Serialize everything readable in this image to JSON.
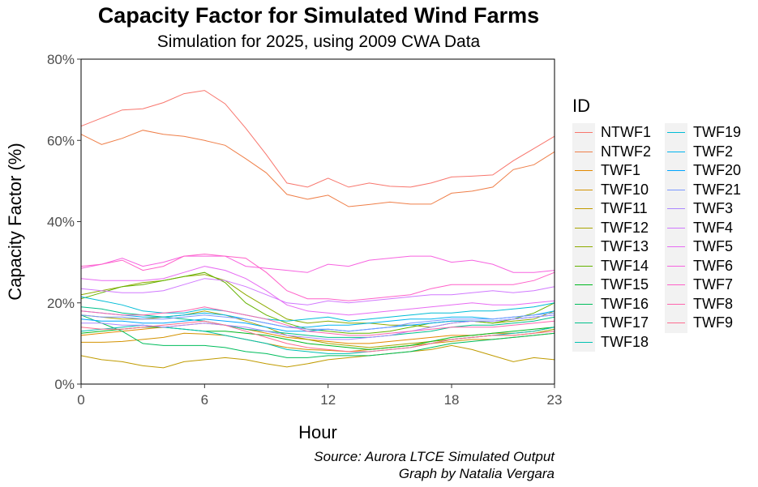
{
  "chart_data": {
    "type": "line",
    "title": "Capacity Factor for Simulated Wind Farms",
    "subtitle": "Simulation for 2025, using 2009 CWA Data",
    "xlabel": "Hour",
    "ylabel": "Capacity Factor (%)",
    "caption": [
      "Source: Aurora LTCE Simulated Output",
      "Graph by Natalia Vergara"
    ],
    "xlim": [
      0,
      23
    ],
    "ylim": [
      0,
      80
    ],
    "x_ticks": [
      0,
      6,
      12,
      18,
      23
    ],
    "x_tick_labels": [
      "0",
      "6",
      "12",
      "18",
      "23"
    ],
    "y_ticks": [
      0,
      20,
      40,
      60,
      80
    ],
    "y_tick_labels": [
      "0%",
      "20%",
      "40%",
      "60%",
      "80%"
    ],
    "grid": false,
    "legend_title": "ID",
    "legend_position": "right",
    "x": [
      0,
      1,
      2,
      3,
      4,
      5,
      6,
      7,
      8,
      9,
      10,
      11,
      12,
      13,
      14,
      15,
      16,
      17,
      18,
      19,
      20,
      21,
      22,
      23
    ],
    "series": [
      {
        "name": "NTWF1",
        "color": "#F8766D",
        "values": [
          63.5,
          65.5,
          67.5,
          67.8,
          69.3,
          71.5,
          72.3,
          69,
          63,
          56.5,
          49.5,
          48.5,
          50.7,
          48.5,
          49.5,
          48.7,
          48.5,
          49.5,
          51,
          51.2,
          51.5,
          55,
          58,
          61
        ]
      },
      {
        "name": "NTWF2",
        "color": "#EF7F49",
        "values": [
          61.5,
          59,
          60.5,
          62.5,
          61.5,
          61,
          60,
          58.8,
          55.5,
          52,
          46.7,
          45.5,
          46.5,
          43.7,
          44.2,
          44.8,
          44.3,
          44.3,
          47,
          47.5,
          48.5,
          52.8,
          54,
          57.2
        ]
      },
      {
        "name": "TWF1",
        "color": "#E38900",
        "values": [
          12,
          12.5,
          13,
          13.5,
          14,
          14.5,
          15,
          14.5,
          13.5,
          12.5,
          11.5,
          11,
          10.5,
          10,
          10,
          10.5,
          11,
          11.5,
          12,
          12,
          12.5,
          12.5,
          13,
          14
        ]
      },
      {
        "name": "TWF10",
        "color": "#D39200",
        "values": [
          10.3,
          10.3,
          10.5,
          11,
          11.5,
          12.5,
          12.3,
          12,
          11,
          10,
          9,
          8.5,
          8.3,
          8,
          8.5,
          9,
          9.5,
          10,
          10.5,
          11,
          11,
          11.5,
          12,
          12.5
        ]
      },
      {
        "name": "TWF11",
        "color": "#C09B00",
        "values": [
          7,
          6,
          5.5,
          4.5,
          4,
          5.5,
          6,
          6.5,
          6,
          5,
          4.2,
          5,
          6,
          6.5,
          7,
          7.5,
          8,
          8.5,
          9.5,
          8.5,
          7,
          5.5,
          6.5,
          6
        ]
      },
      {
        "name": "TWF12",
        "color": "#A9A400",
        "values": [
          17,
          16.5,
          16,
          16,
          16.5,
          17,
          18,
          17,
          15.5,
          14,
          12,
          11,
          10,
          9.5,
          9,
          9.5,
          10,
          10.5,
          11,
          11.5,
          12,
          12,
          12.5,
          13.5
        ]
      },
      {
        "name": "TWF13",
        "color": "#8DAB00",
        "values": [
          22,
          23,
          24,
          25,
          25.5,
          26.5,
          27,
          25.5,
          22,
          19,
          16,
          15,
          15.5,
          15,
          15,
          14.5,
          14.5,
          14,
          15,
          15.5,
          15,
          15.5,
          16,
          18
        ]
      },
      {
        "name": "TWF14",
        "color": "#64B200",
        "values": [
          21,
          22.5,
          24,
          24.5,
          25.5,
          26.5,
          27.5,
          25,
          20,
          17,
          15,
          13.5,
          13,
          12.5,
          12.5,
          13,
          14,
          15,
          15.5,
          15.5,
          15,
          16,
          17.5,
          20
        ]
      },
      {
        "name": "TWF15",
        "color": "#00B81F",
        "values": [
          12.5,
          13,
          13.5,
          14,
          14,
          13.5,
          13,
          13,
          12.5,
          12,
          11,
          10,
          9.5,
          9,
          8.5,
          9,
          9.5,
          10.5,
          11.5,
          12,
          12.5,
          13,
          13.5,
          14
        ]
      },
      {
        "name": "TWF16",
        "color": "#00BD5C",
        "values": [
          17,
          15,
          13,
          10,
          9.5,
          9.5,
          9.5,
          9,
          8,
          7.5,
          6.5,
          6.5,
          7,
          7,
          7,
          7.5,
          8,
          9,
          10,
          10.5,
          11,
          11.5,
          12,
          12.5
        ]
      },
      {
        "name": "TWF17",
        "color": "#00C08B",
        "values": [
          19,
          18.5,
          17.5,
          17,
          16.5,
          16,
          15.5,
          14.5,
          13.5,
          13,
          12.5,
          12,
          11.5,
          11.5,
          11.5,
          12,
          12.5,
          13,
          14,
          14.5,
          14.5,
          15,
          15.5,
          16.5
        ]
      },
      {
        "name": "TWF18",
        "color": "#00C1B2",
        "values": [
          13,
          13.5,
          14,
          14.5,
          14,
          13.5,
          13,
          12,
          11,
          10,
          8.5,
          8,
          7.5,
          7.5,
          8,
          8.5,
          9,
          10,
          11,
          11.5,
          12,
          12.5,
          13,
          14
        ]
      },
      {
        "name": "TWF19",
        "color": "#00BCD6",
        "values": [
          21.5,
          20.5,
          19.5,
          18,
          17.5,
          17.5,
          18.5,
          18,
          17,
          16,
          15.5,
          16,
          16.5,
          15.5,
          16,
          16.5,
          17,
          17.5,
          17.5,
          18,
          18,
          18.5,
          19,
          20
        ]
      },
      {
        "name": "TWF2",
        "color": "#00B4EF",
        "values": [
          18,
          17.5,
          17,
          16.5,
          16.5,
          17,
          17.5,
          17,
          16,
          15,
          14,
          14,
          14.5,
          14.5,
          15,
          15.5,
          16,
          16,
          16.5,
          16.5,
          16,
          16.5,
          17,
          18
        ]
      },
      {
        "name": "TWF20",
        "color": "#00A5FF",
        "values": [
          16,
          15.5,
          15.5,
          15,
          15,
          15.5,
          16,
          15.5,
          15,
          14,
          13,
          13,
          13.5,
          13,
          13.5,
          14,
          14.5,
          15,
          15.5,
          15.5,
          15.5,
          16,
          16.5,
          17
        ]
      },
      {
        "name": "TWF21",
        "color": "#7997FF",
        "values": [
          17,
          16.5,
          16.5,
          16,
          16,
          16.5,
          17,
          16.5,
          16,
          15,
          14,
          13.5,
          13.5,
          13,
          13.5,
          14,
          15,
          15.5,
          16,
          16,
          16,
          16.5,
          17,
          17.5
        ]
      },
      {
        "name": "TWF3",
        "color": "#AC88FF",
        "values": [
          15,
          15,
          14.5,
          14.5,
          14,
          14.5,
          15,
          14.5,
          14,
          13,
          12,
          11.5,
          11,
          11,
          11.5,
          12,
          13,
          14,
          15,
          15.5,
          15.5,
          16,
          16.5,
          17
        ]
      },
      {
        "name": "TWF4",
        "color": "#D078FF",
        "values": [
          23.5,
          23,
          22.5,
          22.5,
          23,
          24.5,
          26,
          25.5,
          24,
          22,
          20,
          19.5,
          20.5,
          20,
          20.5,
          21,
          21.5,
          22,
          22,
          22.5,
          23,
          22.5,
          23,
          24
        ]
      },
      {
        "name": "TWF5",
        "color": "#E76BF3",
        "values": [
          26,
          25.5,
          25.5,
          25.5,
          26,
          27.5,
          29,
          28,
          26,
          23,
          19.5,
          18,
          17.5,
          17,
          17.5,
          18,
          18.5,
          19,
          19.5,
          20,
          19.5,
          19.5,
          20,
          20.5
        ]
      },
      {
        "name": "TWF6",
        "color": "#F763E0",
        "values": [
          28.5,
          29.5,
          31,
          29,
          30,
          31.5,
          31.5,
          31.5,
          29,
          28.5,
          28,
          27.5,
          29.5,
          29,
          30.5,
          31,
          31.5,
          31.5,
          30,
          30.5,
          29.5,
          27.5,
          27.5,
          28
        ]
      },
      {
        "name": "TWF7",
        "color": "#FF61C9",
        "values": [
          29,
          29.5,
          30.5,
          28,
          29,
          31.5,
          32,
          31.5,
          31,
          27.5,
          23,
          21,
          21,
          20.5,
          21,
          21.5,
          22,
          23.5,
          24.5,
          24.5,
          24.5,
          24.5,
          25.5,
          27.5
        ]
      },
      {
        "name": "TWF8",
        "color": "#FF65AE",
        "values": [
          18,
          17.5,
          17,
          17,
          17.5,
          18,
          19,
          18,
          17,
          16,
          14.5,
          13,
          12.5,
          12,
          12,
          12.5,
          13,
          13.5,
          14,
          14,
          14,
          14.5,
          15,
          15.5
        ]
      },
      {
        "name": "TWF9",
        "color": "#FD6C8F",
        "values": [
          14,
          13.5,
          13.5,
          14,
          14.5,
          15,
          15.5,
          14.5,
          13,
          11.5,
          10,
          9,
          8.5,
          8,
          8,
          8.5,
          9,
          10,
          11,
          11.5,
          12,
          12,
          12.5,
          13
        ]
      }
    ],
    "legend_columns": [
      [
        "NTWF1",
        "NTWF2",
        "TWF1",
        "TWF10",
        "TWF11",
        "TWF12",
        "TWF13",
        "TWF14",
        "TWF15",
        "TWF16",
        "TWF17",
        "TWF18"
      ],
      [
        "TWF19",
        "TWF2",
        "TWF20",
        "TWF21",
        "TWF3",
        "TWF4",
        "TWF5",
        "TWF6",
        "TWF7",
        "TWF8",
        "TWF9"
      ]
    ]
  }
}
